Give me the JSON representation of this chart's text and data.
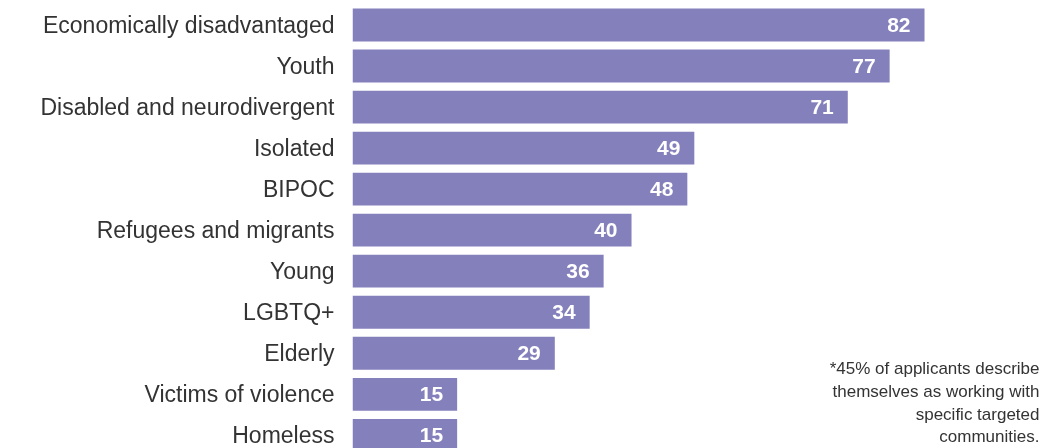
{
  "chart_data": {
    "type": "bar",
    "orientation": "horizontal",
    "data_labels": true,
    "grid": false,
    "tick_labels": "y",
    "categories": [
      "Economically disadvantaged",
      "Youth",
      "Disabled and neurodivergent",
      "Isolated",
      "BIPOC",
      "Refugees and migrants",
      "Young",
      "LGBTQ+",
      "Elderly",
      "Victims of violence",
      "Homeless"
    ],
    "values": [
      82,
      77,
      71,
      49,
      48,
      40,
      36,
      34,
      29,
      15,
      15
    ],
    "color": "#8480bc",
    "annotations": [
      "*45% of applicants describe themselves as working with specific targeted communities."
    ]
  }
}
